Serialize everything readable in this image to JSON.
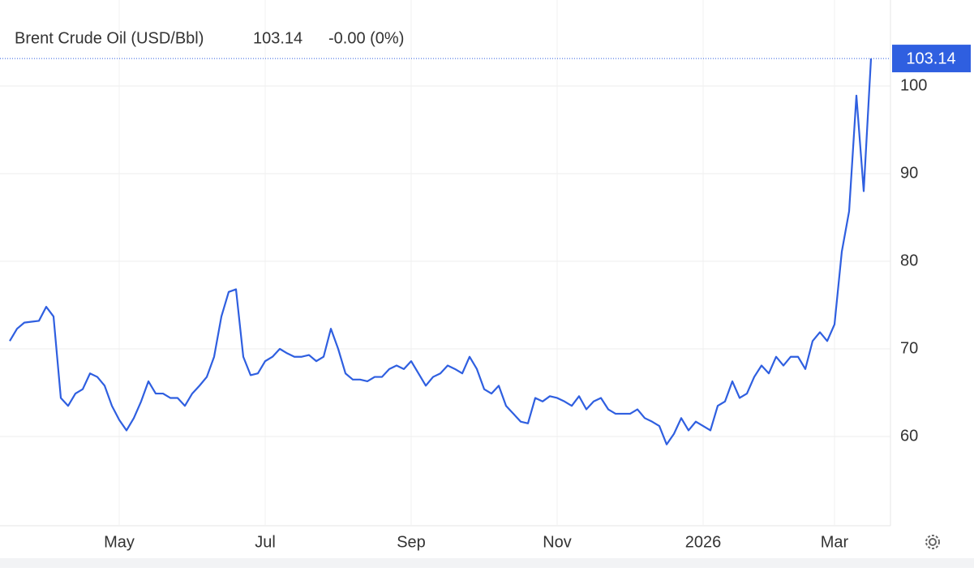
{
  "chart_data": {
    "type": "line",
    "title": "Brent Crude Oil (USD/Bbl)",
    "change": "-0.00 (0%)",
    "color": "#2f5fe0",
    "change_color": "#e0555a",
    "grid": true,
    "ylim": [
      50,
      110
    ],
    "yticks": [
      60,
      70,
      80,
      90,
      100
    ],
    "categories": [
      null,
      null,
      null,
      null,
      null,
      null,
      null,
      null,
      null,
      null,
      null,
      null,
      null,
      null,
      null,
      "May",
      null,
      null,
      null,
      null,
      null,
      null,
      null,
      null,
      null,
      null,
      null,
      null,
      null,
      null,
      null,
      null,
      null,
      null,
      null,
      "Jul",
      null,
      null,
      null,
      null,
      null,
      null,
      null,
      null,
      null,
      null,
      null,
      null,
      null,
      null,
      null,
      null,
      null,
      null,
      null,
      "Sep",
      null,
      null,
      null,
      null,
      null,
      null,
      null,
      null,
      null,
      null,
      null,
      null,
      null,
      null,
      null,
      null,
      null,
      null,
      null,
      "Nov",
      null,
      null,
      null,
      null,
      null,
      null,
      null,
      null,
      null,
      null,
      null,
      null,
      null,
      null,
      null,
      null,
      null,
      null,
      null,
      "2026",
      null,
      null,
      null,
      null,
      null,
      null,
      null,
      null,
      null,
      null,
      null,
      null,
      null,
      null,
      null,
      null,
      null,
      "Mar",
      null,
      null,
      null,
      null,
      null
    ],
    "values": [
      70.9,
      72.3,
      73,
      73.1,
      73.2,
      74.8,
      73.7,
      64.4,
      63.5,
      64.9,
      65.4,
      67.2,
      66.8,
      65.8,
      63.5,
      61.9,
      60.7,
      62.1,
      64,
      66.3,
      64.9,
      64.9,
      64.4,
      64.4,
      63.5,
      64.9,
      65.8,
      66.8,
      69.1,
      73.7,
      76.5,
      76.8,
      69.1,
      67,
      67.2,
      68.6,
      69.1,
      70,
      69.5,
      69.1,
      69.1,
      69.3,
      68.6,
      69.1,
      72.3,
      70,
      67.2,
      66.5,
      66.5,
      66.3,
      66.8,
      66.8,
      67.7,
      68.1,
      67.7,
      68.6,
      67.2,
      65.8,
      66.8,
      67.2,
      68.1,
      67.7,
      67.2,
      69.1,
      67.7,
      65.4,
      64.9,
      65.8,
      63.5,
      62.6,
      61.7,
      61.5,
      64.4,
      64,
      64.6,
      64.4,
      64,
      63.5,
      64.6,
      63.1,
      64,
      64.4,
      63.1,
      62.6,
      62.6,
      62.6,
      63.1,
      62.1,
      61.7,
      61.2,
      59.1,
      60.3,
      62.1,
      60.7,
      61.7,
      61.2,
      60.7,
      63.5,
      64,
      66.3,
      64.4,
      64.9,
      66.8,
      68.1,
      67.2,
      69.1,
      68.1,
      69.1,
      69.1,
      67.7,
      70.9,
      71.9,
      70.9,
      72.8,
      81.1,
      85.7,
      98.9,
      88,
      103.14
    ]
  }
}
